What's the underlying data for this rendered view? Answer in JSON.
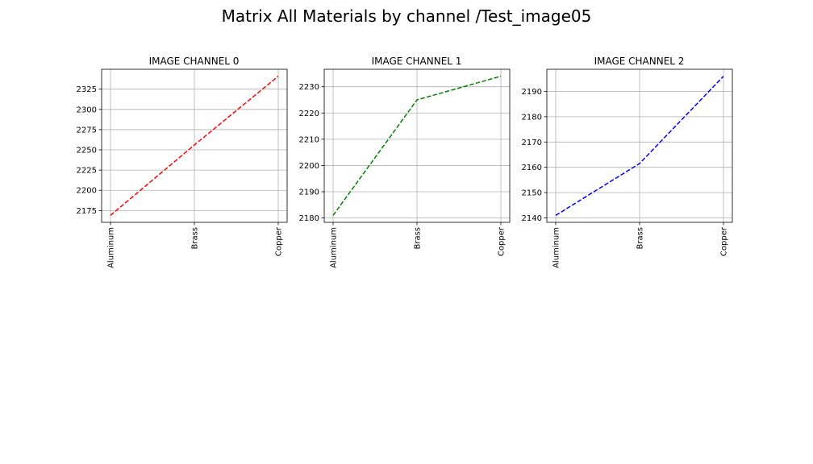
{
  "figure": {
    "suptitle": "Matrix All Materials by channel /Test_image05"
  },
  "chart_data": [
    {
      "type": "line",
      "title": "IMAGE CHANNEL 0",
      "categories": [
        "Aluminum",
        "Brass",
        "Copper"
      ],
      "series": [
        {
          "values": [
            2169,
            2256,
            2341
          ],
          "color": "#ff0000",
          "linestyle": "dashed"
        }
      ],
      "yticks": [
        2175,
        2200,
        2225,
        2250,
        2275,
        2300,
        2325
      ],
      "ylim": [
        2160.4,
        2349.6
      ],
      "grid": true,
      "xlabel": "",
      "ylabel": ""
    },
    {
      "type": "line",
      "title": "IMAGE CHANNEL 1",
      "categories": [
        "Aluminum",
        "Brass",
        "Copper"
      ],
      "series": [
        {
          "values": [
            2181,
            2225,
            2234
          ],
          "color": "#008000",
          "linestyle": "dashed"
        }
      ],
      "yticks": [
        2180,
        2190,
        2200,
        2210,
        2220,
        2230
      ],
      "ylim": [
        2178.35,
        2236.65
      ],
      "grid": true,
      "xlabel": "",
      "ylabel": ""
    },
    {
      "type": "line",
      "title": "IMAGE CHANNEL 2",
      "categories": [
        "Aluminum",
        "Brass",
        "Copper"
      ],
      "series": [
        {
          "values": [
            2141,
            2161.5,
            2196
          ],
          "color": "#0000ff",
          "linestyle": "dashed"
        }
      ],
      "yticks": [
        2140,
        2150,
        2160,
        2170,
        2180,
        2190
      ],
      "ylim": [
        2138.25,
        2198.75
      ],
      "grid": true,
      "xlabel": "",
      "ylabel": ""
    }
  ]
}
